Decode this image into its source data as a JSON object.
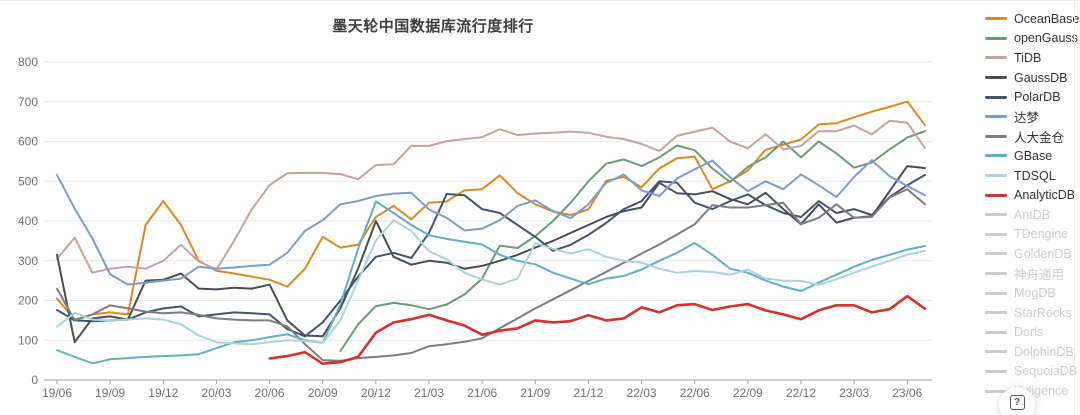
{
  "title": "墨天轮中国数据库流行度排行",
  "help_button": {
    "glyph": "?"
  },
  "axis_colors": {
    "label": "#6e7079",
    "grid": "#e5e9f2",
    "axis_line": "#9aa0a8"
  },
  "chart_data": {
    "type": "line",
    "title": "墨天轮中国数据库流行度排行",
    "xlabel": "",
    "ylabel": "",
    "ylim": [
      0,
      800
    ],
    "y_ticks": [
      0,
      100,
      200,
      300,
      400,
      500,
      600,
      700,
      800
    ],
    "grid": "horizontal-only",
    "legend_position": "right",
    "x": [
      "19/06",
      "19/07",
      "19/08",
      "19/09",
      "19/10",
      "19/11",
      "19/12",
      "20/01",
      "20/02",
      "20/03",
      "20/04",
      "20/05",
      "20/06",
      "20/07",
      "20/08",
      "20/09",
      "20/10",
      "20/11",
      "20/12",
      "21/01",
      "21/02",
      "21/03",
      "21/04",
      "21/05",
      "21/06",
      "21/07",
      "21/08",
      "21/09",
      "21/10",
      "21/11",
      "21/12",
      "22/01",
      "22/02",
      "22/03",
      "22/04",
      "22/05",
      "22/06",
      "22/07",
      "22/08",
      "22/09",
      "22/10",
      "22/11",
      "22/12",
      "23/01",
      "23/02",
      "23/03",
      "23/04",
      "23/05",
      "23/06",
      "23/07"
    ],
    "x_tick_labels": [
      "19/06",
      "19/09",
      "19/12",
      "20/03",
      "20/06",
      "20/09",
      "20/12",
      "21/03",
      "21/06",
      "21/09",
      "21/12",
      "22/03",
      "22/06",
      "22/09",
      "22/12",
      "23/03",
      "23/06"
    ],
    "x_tick_every": 3,
    "series": [
      {
        "name": "OceanBase",
        "color": "#db8a20",
        "active": true,
        "line_width": 2,
        "values": [
          205,
          152,
          165,
          170,
          165,
          390,
          450,
          390,
          300,
          275,
          268,
          260,
          252,
          235,
          280,
          360,
          333,
          340,
          410,
          438,
          404,
          446,
          449,
          477,
          480,
          515,
          470,
          442,
          424,
          415,
          429,
          501,
          511,
          485,
          532,
          558,
          562,
          480,
          500,
          527,
          579,
          592,
          605,
          643,
          646,
          661,
          675,
          687,
          701,
          641
        ]
      },
      {
        "name": "openGauss",
        "color": "#699c76",
        "active": true,
        "line_width": 2,
        "values": [
          null,
          null,
          null,
          null,
          null,
          null,
          null,
          null,
          null,
          null,
          null,
          null,
          null,
          null,
          null,
          null,
          73,
          140,
          186,
          194,
          188,
          178,
          190,
          215,
          255,
          338,
          332,
          362,
          400,
          446,
          500,
          544,
          555,
          538,
          560,
          590,
          578,
          532,
          498,
          536,
          560,
          600,
          560,
          600,
          570,
          534,
          547,
          580,
          610,
          626
        ]
      },
      {
        "name": "TiDB",
        "color": "#c4a49b",
        "active": true,
        "line_width": 2,
        "values": [
          305,
          358,
          270,
          280,
          285,
          280,
          300,
          340,
          298,
          278,
          350,
          430,
          490,
          520,
          521,
          521,
          518,
          505,
          541,
          543,
          589,
          589,
          601,
          606,
          611,
          631,
          616,
          620,
          622,
          625,
          622,
          612,
          606,
          594,
          576,
          614,
          625,
          635,
          600,
          583,
          618,
          580,
          589,
          626,
          626,
          640,
          618,
          652,
          647,
          584
        ]
      },
      {
        "name": "GaussDB",
        "color": "#4b4d55",
        "active": true,
        "line_width": 2,
        "values": [
          315,
          95,
          155,
          160,
          152,
          250,
          252,
          268,
          230,
          228,
          232,
          230,
          240,
          150,
          112,
          110,
          180,
          280,
          400,
          310,
          290,
          300,
          295,
          280,
          287,
          300,
          315,
          333,
          350,
          370,
          390,
          410,
          425,
          434,
          496,
          470,
          467,
          475,
          455,
          442,
          471,
          430,
          392,
          442,
          396,
          408,
          412,
          475,
          538,
          533
        ]
      },
      {
        "name": "PolarDB",
        "color": "#44546e",
        "active": true,
        "line_width": 2,
        "values": [
          176,
          150,
          148,
          150,
          152,
          170,
          180,
          185,
          160,
          165,
          170,
          168,
          165,
          128,
          110,
          145,
          200,
          260,
          310,
          320,
          307,
          370,
          468,
          465,
          430,
          420,
          390,
          360,
          325,
          340,
          365,
          395,
          430,
          450,
          500,
          496,
          446,
          430,
          450,
          467,
          440,
          420,
          410,
          450,
          420,
          430,
          415,
          460,
          490,
          516
        ]
      },
      {
        "name": "达梦",
        "color": "#7e9cc9",
        "active": true,
        "line_width": 2,
        "values": [
          516,
          431,
          356,
          266,
          240,
          245,
          250,
          255,
          285,
          280,
          283,
          287,
          290,
          320,
          375,
          402,
          442,
          450,
          463,
          469,
          471,
          429,
          408,
          376,
          381,
          402,
          438,
          452,
          425,
          407,
          442,
          496,
          517,
          477,
          463,
          507,
          530,
          552,
          510,
          475,
          500,
          480,
          517,
          490,
          460,
          511,
          553,
          513,
          488,
          465
        ]
      },
      {
        "name": "人大金仓",
        "color": "#7c7d82",
        "active": true,
        "line_width": 2,
        "values": [
          230,
          150,
          165,
          188,
          180,
          172,
          168,
          170,
          164,
          155,
          152,
          150,
          150,
          135,
          90,
          50,
          48,
          55,
          58,
          62,
          68,
          85,
          90,
          96,
          105,
          130,
          155,
          180,
          203,
          226,
          249,
          272,
          295,
          318,
          341,
          366,
          392,
          440,
          434,
          434,
          440,
          446,
          392,
          408,
          442,
          408,
          410,
          459,
          480,
          442
        ]
      },
      {
        "name": "GBase",
        "color": "#61afc5",
        "active": true,
        "line_width": 2,
        "values": [
          75,
          58,
          42,
          52,
          55,
          58,
          60,
          62,
          65,
          80,
          95,
          100,
          108,
          115,
          100,
          93,
          190,
          330,
          449,
          420,
          390,
          364,
          355,
          348,
          341,
          315,
          300,
          291,
          270,
          255,
          241,
          255,
          262,
          278,
          300,
          320,
          345,
          315,
          280,
          270,
          250,
          235,
          224,
          245,
          265,
          285,
          302,
          315,
          328,
          337
        ]
      },
      {
        "name": "TDSQL",
        "color": "#a8d5dc",
        "active": true,
        "line_width": 2,
        "values": [
          134,
          169,
          152,
          150,
          152,
          155,
          152,
          140,
          112,
          95,
          92,
          90,
          95,
          100,
          98,
          93,
          150,
          250,
          351,
          402,
          375,
          324,
          304,
          270,
          253,
          240,
          255,
          345,
          330,
          318,
          329,
          310,
          300,
          295,
          280,
          270,
          274,
          272,
          265,
          278,
          255,
          250,
          249,
          240,
          253,
          270,
          285,
          300,
          315,
          325
        ]
      },
      {
        "name": "AnalyticDB",
        "color": "#d5312d",
        "active": true,
        "line_width": 2.6,
        "values": [
          null,
          null,
          null,
          null,
          null,
          null,
          null,
          null,
          null,
          null,
          null,
          null,
          54,
          60,
          70,
          41,
          45,
          58,
          119,
          145,
          153,
          164,
          150,
          137,
          114,
          124,
          130,
          150,
          145,
          148,
          163,
          150,
          155,
          183,
          170,
          188,
          191,
          176,
          185,
          191,
          175,
          165,
          153,
          175,
          188,
          188,
          170,
          178,
          211,
          179
        ]
      },
      {
        "name": "AntDB",
        "color": "#cccccc",
        "active": false,
        "values": []
      },
      {
        "name": "TDengine",
        "color": "#cccccc",
        "active": false,
        "values": []
      },
      {
        "name": "GoldenDB",
        "color": "#cccccc",
        "active": false,
        "values": []
      },
      {
        "name": "神舟通用",
        "color": "#cccccc",
        "active": false,
        "values": []
      },
      {
        "name": "MogDB",
        "color": "#cccccc",
        "active": false,
        "values": []
      },
      {
        "name": "StarRocks",
        "color": "#cccccc",
        "active": false,
        "values": []
      },
      {
        "name": "Doris",
        "color": "#cccccc",
        "active": false,
        "values": []
      },
      {
        "name": "DolphinDB",
        "color": "#cccccc",
        "active": false,
        "values": []
      },
      {
        "name": "SequoiaDB",
        "color": "#cccccc",
        "active": false,
        "values": []
      },
      {
        "name": "Kyligence",
        "color": "#cccccc",
        "active": false,
        "values": []
      }
    ]
  }
}
